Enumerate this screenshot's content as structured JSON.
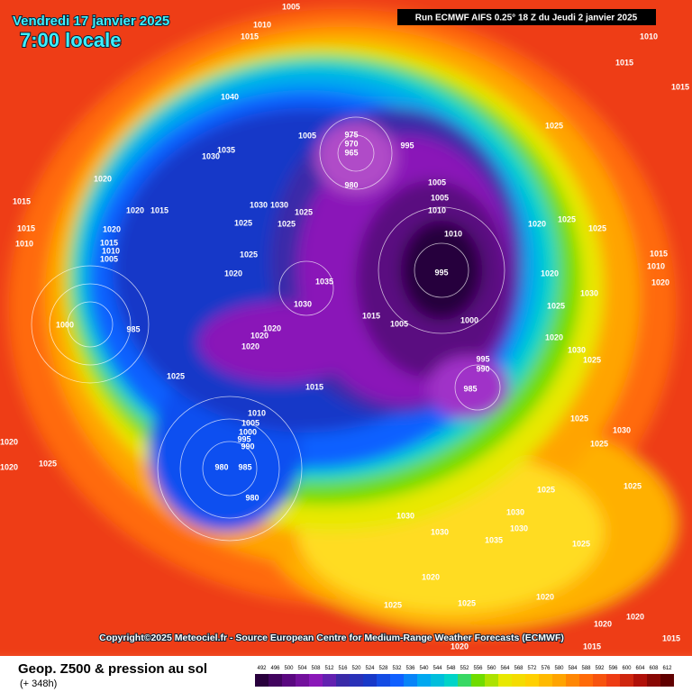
{
  "header": {
    "date": "Vendredi 17 janvier 2025",
    "time": "7:00 locale",
    "run": "Run ECMWF AIFS 0.25° 18 Z du Jeudi 2 janvier 2025"
  },
  "copyright": "Copyright©2025 Meteociel.fr - Source European Centre for Medium-Range Weather Forecasts (ECMWF)",
  "footer": {
    "title": "Geop. Z500 & pression au sol",
    "lead": "(+ 348h)"
  },
  "legend": {
    "levels": [
      492,
      496,
      500,
      504,
      508,
      512,
      516,
      520,
      524,
      528,
      532,
      536,
      540,
      544,
      548,
      552,
      556,
      560,
      564,
      568,
      572,
      576,
      580,
      584,
      588,
      592,
      596,
      600,
      604,
      608,
      612
    ]
  },
  "map": {
    "isobar_labels": [
      "1005",
      "1010",
      "1015",
      "1040",
      "1035",
      "1030",
      "1020",
      "1020",
      "1015",
      "1015",
      "1015",
      "1010",
      "1020",
      "1015",
      "1010",
      "1005",
      "1000",
      "985",
      "1025",
      "1020",
      "1025",
      "1025",
      "1030",
      "1025",
      "1025",
      "1030",
      "1035",
      "1030",
      "1005",
      "975",
      "970",
      "965",
      "995",
      "980",
      "1005",
      "1005",
      "1010",
      "1010",
      "995",
      "1000",
      "1015",
      "1005",
      "995",
      "990",
      "985",
      "1020",
      "1020",
      "1020",
      "1015",
      "1010",
      "1005",
      "1000",
      "995",
      "990",
      "980",
      "985",
      "980",
      "1025",
      "1020",
      "1020",
      "1030",
      "1030",
      "1035",
      "1030",
      "1030",
      "1025",
      "1020",
      "1025",
      "1020",
      "1025",
      "1020",
      "1015",
      "1015",
      "1020",
      "1020",
      "1025",
      "1010",
      "1015",
      "1015",
      "1025",
      "1025",
      "1025",
      "1020",
      "1015",
      "1010",
      "1020",
      "1020",
      "1025",
      "1030",
      "1020",
      "1030",
      "1025",
      "1025",
      "1025",
      "1030",
      "1025"
    ]
  }
}
